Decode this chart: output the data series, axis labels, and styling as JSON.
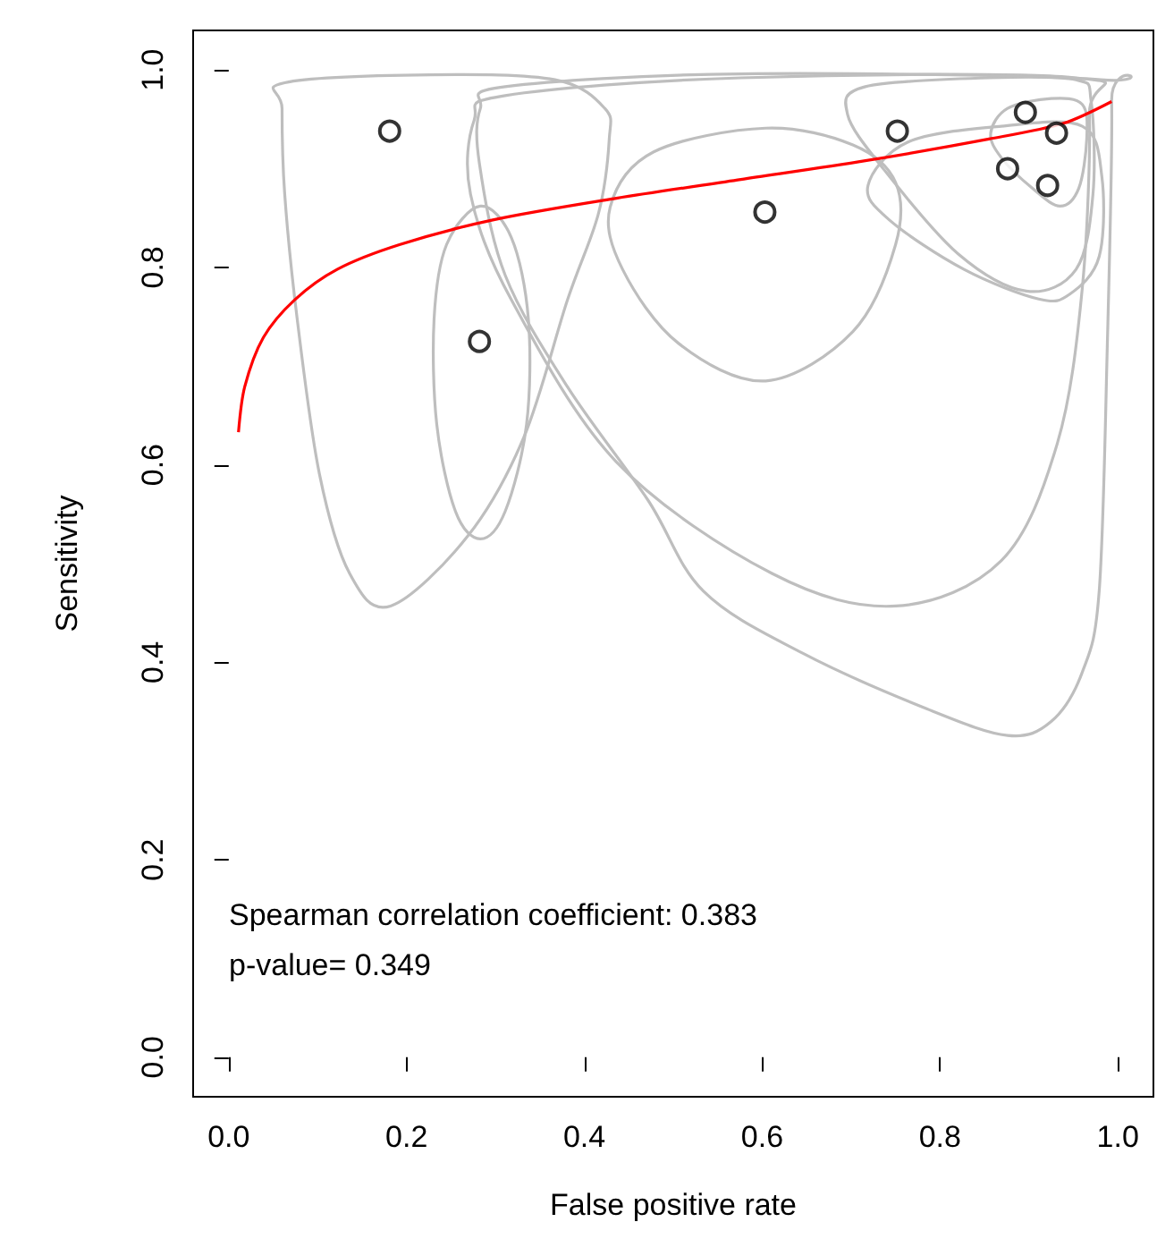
{
  "chart_data": {
    "type": "scatter",
    "xlabel": "False positive rate",
    "ylabel": "Sensitivity",
    "xlim": [
      -0.04,
      1.04
    ],
    "ylim": [
      -0.04,
      1.04
    ],
    "xticks": [
      {
        "value": 0,
        "label": "0.0"
      },
      0.2,
      0.4,
      0.6,
      0.8,
      {
        "value": 1,
        "label": "1.0"
      }
    ],
    "yticks": [
      {
        "value": 0,
        "label": "0.0"
      },
      0.2,
      0.4,
      0.6,
      0.8,
      {
        "value": 1,
        "label": "1.0"
      }
    ],
    "grid": false,
    "annotations": [
      "Spearman correlation coefficient: 0.383",
      "p-value= 0.349"
    ],
    "series": [
      {
        "type": "line",
        "color": "#ff0000",
        "marker": "none",
        "x": [
          0.011,
          0.018,
          0.039,
          0.074,
          0.122,
          0.192,
          0.297,
          0.436,
          0.576,
          0.716,
          0.855,
          0.939,
          0.993
        ],
        "values": [
          0.633,
          0.679,
          0.729,
          0.767,
          0.798,
          0.823,
          0.848,
          0.87,
          0.889,
          0.908,
          0.93,
          0.946,
          0.968
        ]
      },
      {
        "type": "scatter",
        "color": "#000000",
        "marker": "circle",
        "x": [
          0.181,
          0.282,
          0.603,
          0.752,
          0.896,
          0.931,
          0.876,
          0.921
        ],
        "values": [
          0.938,
          0.725,
          0.856,
          0.938,
          0.957,
          0.936,
          0.9,
          0.883
        ]
      }
    ]
  }
}
